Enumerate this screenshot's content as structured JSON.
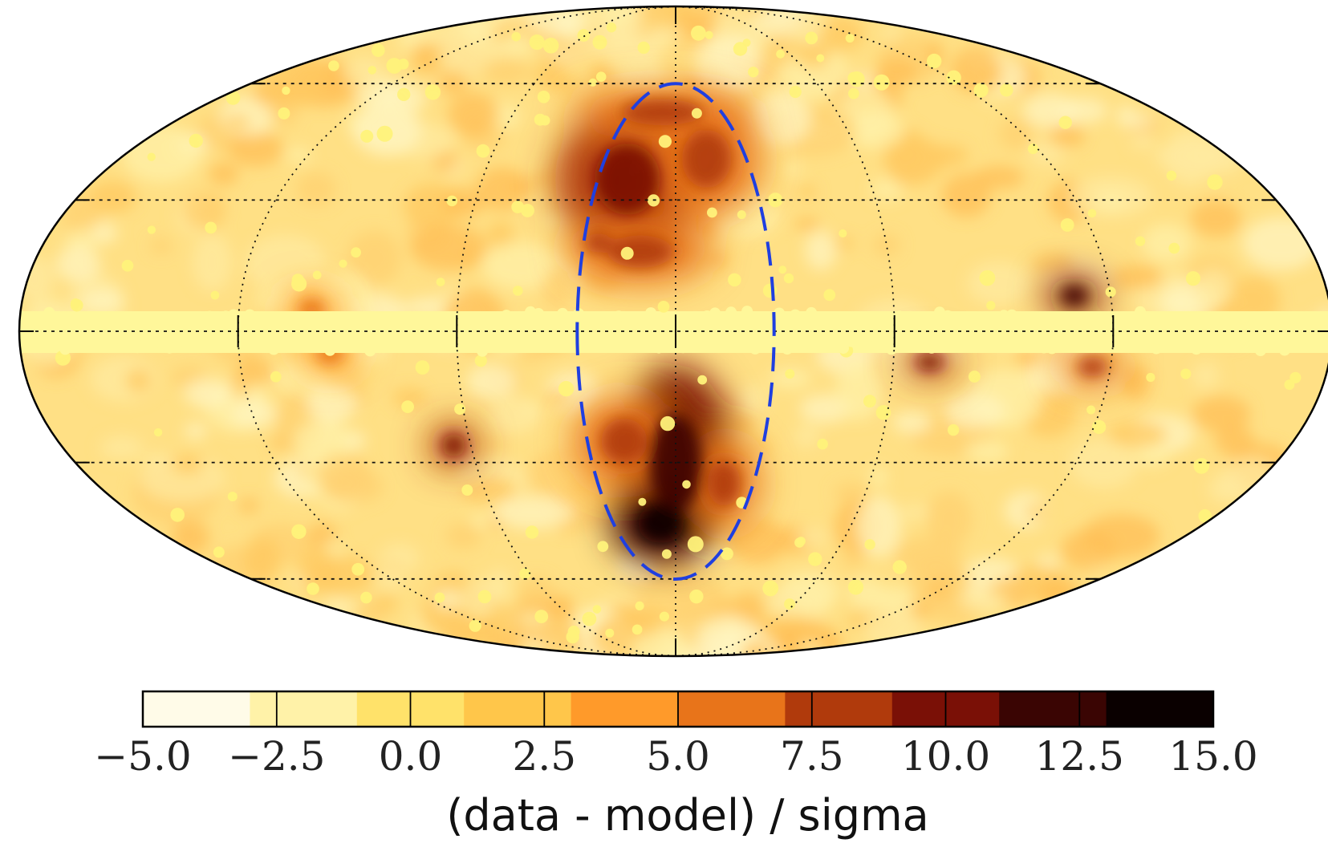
{
  "chart_data": {
    "type": "heatmap",
    "projection": "mollweide",
    "title": "",
    "grid": true,
    "colormap": "afmhot_r",
    "colors": [
      "#fffbe8",
      "#fff2a8",
      "#ffe26a",
      "#ffc64a",
      "#ff9a2a",
      "#e8741a",
      "#b03a0c",
      "#7a1006",
      "#3a0503",
      "#0a0000"
    ],
    "overlay": {
      "shape": "ellipse",
      "style": "dashed",
      "color": "#1f3fe0",
      "center": [
        0,
        0
      ],
      "lon_half_width_deg": 27,
      "lat_half_height_deg": 60
    },
    "colorbar": {
      "orientation": "horizontal",
      "placement": "bottom",
      "range": [
        -5.0,
        15.0
      ],
      "ticks": [
        -5.0,
        -2.5,
        0.0,
        2.5,
        5.0,
        7.5,
        10.0,
        12.5,
        15.0
      ],
      "tick_labels": [
        "−5.0",
        "−2.5",
        "0.0",
        "2.5",
        "5.0",
        "7.5",
        "10.0",
        "12.5",
        "15.0"
      ],
      "label": "(data - model) / sigma"
    },
    "features": [
      {
        "lon": 15,
        "lat": 35,
        "value": 10,
        "width_deg": 20,
        "height_deg": 22
      },
      {
        "lon": -10,
        "lat": 40,
        "value": 8,
        "width_deg": 15,
        "height_deg": 18
      },
      {
        "lon": 5,
        "lat": 52,
        "value": 7,
        "width_deg": 25,
        "height_deg": 8
      },
      {
        "lon": 10,
        "lat": 18,
        "value": 7,
        "width_deg": 20,
        "height_deg": 10
      },
      {
        "lon": 0,
        "lat": -30,
        "value": 12,
        "width_deg": 16,
        "height_deg": 30
      },
      {
        "lon": 5,
        "lat": -45,
        "value": 13,
        "width_deg": 14,
        "height_deg": 12
      },
      {
        "lon": 15,
        "lat": -25,
        "value": 8,
        "width_deg": 14,
        "height_deg": 14
      },
      {
        "lon": -15,
        "lat": -35,
        "value": 7,
        "width_deg": 10,
        "height_deg": 14
      },
      {
        "lon": -110,
        "lat": 8,
        "value": 11,
        "width_deg": 8,
        "height_deg": 6
      },
      {
        "lon": -115,
        "lat": -8,
        "value": 8,
        "width_deg": 9,
        "height_deg": 6
      },
      {
        "lon": -70,
        "lat": -7,
        "value": 9,
        "width_deg": 8,
        "height_deg": 5
      },
      {
        "lon": 65,
        "lat": -26,
        "value": 9,
        "width_deg": 7,
        "height_deg": 7
      },
      {
        "lon": 100,
        "lat": 5,
        "value": 6,
        "width_deg": 8,
        "height_deg": 6
      },
      {
        "lon": 95,
        "lat": -5,
        "value": 6,
        "width_deg": 8,
        "height_deg": 6
      },
      {
        "lon": 22,
        "lat": 20,
        "value": 7,
        "width_deg": 8,
        "height_deg": 6
      }
    ]
  }
}
